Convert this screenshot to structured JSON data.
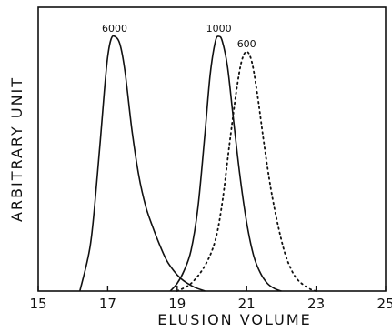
{
  "chart_data": {
    "type": "line",
    "title": "",
    "xlabel": "ELUSION VOLUME",
    "ylabel": "ARBITRARY UNIT",
    "xlim": [
      15,
      25
    ],
    "ylim": [
      0,
      1.0
    ],
    "x_ticks": [
      15,
      17,
      19,
      21,
      23,
      25
    ],
    "x_tick_labels": [
      "15",
      "17",
      "19",
      "21",
      "23",
      "25"
    ],
    "grid": false,
    "legend": "none",
    "series": [
      {
        "label": "6000",
        "line_style": "solid",
        "color": "#111111",
        "peak": 17.2,
        "x": [
          16.2,
          16.5,
          16.7,
          16.9,
          17.0,
          17.1,
          17.2,
          17.35,
          17.5,
          17.7,
          17.9,
          18.1,
          18.3,
          18.5,
          18.7,
          18.9,
          19.1,
          19.3,
          19.5,
          19.8
        ],
        "y": [
          0.0,
          0.18,
          0.45,
          0.78,
          0.92,
          0.99,
          1.0,
          0.97,
          0.86,
          0.63,
          0.45,
          0.33,
          0.25,
          0.18,
          0.12,
          0.08,
          0.05,
          0.03,
          0.015,
          0.0
        ]
      },
      {
        "label": "1000",
        "line_style": "solid",
        "color": "#111111",
        "peak": 20.2,
        "x": [
          18.8,
          19.0,
          19.2,
          19.4,
          19.6,
          19.8,
          19.95,
          20.1,
          20.2,
          20.3,
          20.45,
          20.6,
          20.8,
          21.0,
          21.2,
          21.4,
          21.6,
          21.8,
          22.0
        ],
        "y": [
          0.0,
          0.03,
          0.08,
          0.16,
          0.33,
          0.62,
          0.85,
          0.98,
          1.0,
          0.98,
          0.88,
          0.7,
          0.46,
          0.27,
          0.14,
          0.07,
          0.03,
          0.01,
          0.0
        ]
      },
      {
        "label": "600",
        "line_style": "dotted",
        "color": "#111111",
        "peak": 21.0,
        "x": [
          19.0,
          19.4,
          19.8,
          20.1,
          20.3,
          20.5,
          20.7,
          20.85,
          21.0,
          21.15,
          21.3,
          21.5,
          21.7,
          21.9,
          22.1,
          22.3,
          22.5,
          22.8,
          23.0
        ],
        "y": [
          0.0,
          0.03,
          0.1,
          0.2,
          0.35,
          0.57,
          0.78,
          0.9,
          0.94,
          0.9,
          0.78,
          0.58,
          0.4,
          0.26,
          0.15,
          0.08,
          0.04,
          0.01,
          0.0
        ]
      }
    ]
  }
}
